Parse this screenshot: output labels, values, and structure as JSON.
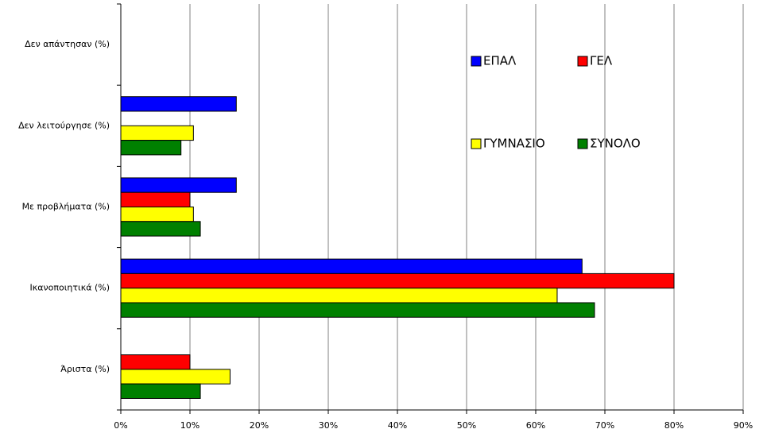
{
  "chart_data": {
    "type": "hbar",
    "categories": [
      "Δεν απάντησαν (%)",
      "Δεν λειτούργησε (%)",
      "Με προβλήματα (%)",
      "Ικανοποιητικά (%)",
      "Άριστα (%)"
    ],
    "series": [
      {
        "name": "ΕΠΑΛ",
        "color": "#0000ff",
        "values": [
          0,
          16.7,
          16.7,
          66.7,
          0
        ]
      },
      {
        "name": "ΓΕΛ",
        "color": "#ff0000",
        "values": [
          0,
          0,
          10,
          80,
          10
        ]
      },
      {
        "name": "ΓΥΜΝΑΣΙΟ",
        "color": "#ffff00",
        "values": [
          0,
          10.5,
          10.5,
          63.1,
          15.8
        ]
      },
      {
        "name": "ΣΥΝΟΛΟ",
        "color": "#008000",
        "values": [
          0,
          8.7,
          11.5,
          68.5,
          11.5
        ]
      }
    ],
    "xlim": [
      0,
      90
    ],
    "xticks": [
      {
        "value": 0,
        "label": "0%"
      },
      {
        "value": 10,
        "label": "10%"
      },
      {
        "value": 20,
        "label": "20%"
      },
      {
        "value": 30,
        "label": "30%"
      },
      {
        "value": 40,
        "label": "40%"
      },
      {
        "value": 50,
        "label": "50%"
      },
      {
        "value": 60,
        "label": "60%"
      },
      {
        "value": 70,
        "label": "70%"
      },
      {
        "value": 80,
        "label": "80%"
      },
      {
        "value": 90,
        "label": "90%"
      }
    ],
    "grid": true
  }
}
